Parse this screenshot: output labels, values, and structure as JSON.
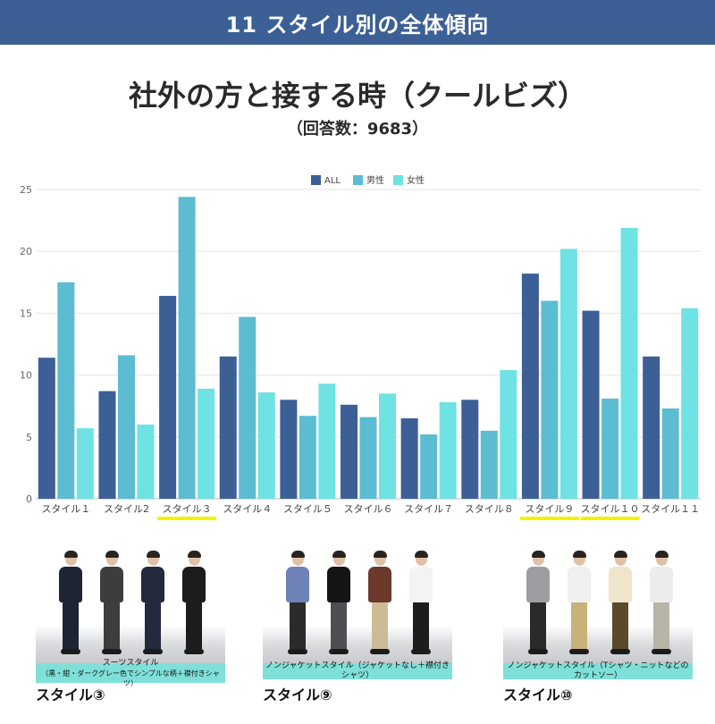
{
  "header": {
    "title": "11 スタイル別の全体傾向"
  },
  "main_title": "社外の方と接する時（クールビズ）",
  "sub_title": "（回答数：9683）",
  "colors": {
    "header_bg": "#3c5f96",
    "all": "#3c5f96",
    "male": "#5cbcd2",
    "female": "#6fe2e4",
    "highlight": "#f2f200",
    "caption_bg": "#7fe0d9"
  },
  "chart_data": {
    "type": "bar",
    "categories": [
      "スタイル１",
      "スタイル2",
      "スタイル３",
      "スタイル４",
      "スタイル５",
      "スタイル６",
      "スタイル７",
      "スタイル８",
      "スタイル９",
      "スタイル１０",
      "スタイル１１"
    ],
    "series": [
      {
        "name": "ALL",
        "values": [
          11.4,
          8.7,
          16.4,
          11.5,
          8.0,
          7.6,
          6.5,
          8.0,
          18.2,
          15.2,
          11.5
        ]
      },
      {
        "name": "男性",
        "values": [
          17.5,
          11.6,
          24.4,
          14.7,
          6.7,
          6.6,
          5.2,
          5.5,
          16.0,
          8.1,
          7.3
        ]
      },
      {
        "name": "女性",
        "values": [
          5.7,
          6.0,
          8.9,
          8.6,
          9.3,
          8.5,
          7.8,
          10.4,
          20.2,
          21.9,
          15.4
        ]
      }
    ],
    "yticks": [
      "0",
      "5",
      "10",
      "15",
      "20",
      "25"
    ],
    "ylim": [
      0,
      25
    ],
    "grid": true,
    "legend_position": "top-center",
    "highlighted_categories": [
      "スタイル３",
      "スタイル９",
      "スタイル１０"
    ]
  },
  "panels": [
    {
      "caption_lines": [
        "スーツスタイル",
        "（黒・紺・ダークグレー色でシンプルな柄＋襟付きシャツ）"
      ],
      "label": "スタイル③",
      "people_colors": [
        [
          "#1f2433",
          "#1f2433"
        ],
        [
          "#3d3d40",
          "#3d3d40"
        ],
        [
          "#232a3d",
          "#232a3d"
        ],
        [
          "#1c1c1c",
          "#1c1c1c"
        ]
      ]
    },
    {
      "caption_lines": [
        "ノンジャケットスタイル（ジャケットなし＋襟付きシャツ）"
      ],
      "label": "スタイル⑨",
      "people_colors": [
        [
          "#6f82b8",
          "#2b2b2b"
        ],
        [
          "#151515",
          "#4f4f53"
        ],
        [
          "#6b3a2c",
          "#cdbb96"
        ],
        [
          "#f3f3f3",
          "#1d1d1d"
        ]
      ]
    },
    {
      "caption_lines": [
        "ノンジャケットスタイル（Tシャツ・ニットなどのカットソー）"
      ],
      "label": "スタイル⑩",
      "people_colors": [
        [
          "#9d9ea2",
          "#2a2a2a"
        ],
        [
          "#f0f0f0",
          "#c9b27a"
        ],
        [
          "#f0e4cc",
          "#5a4a2a"
        ],
        [
          "#ececec",
          "#b9b4a8"
        ]
      ]
    }
  ]
}
